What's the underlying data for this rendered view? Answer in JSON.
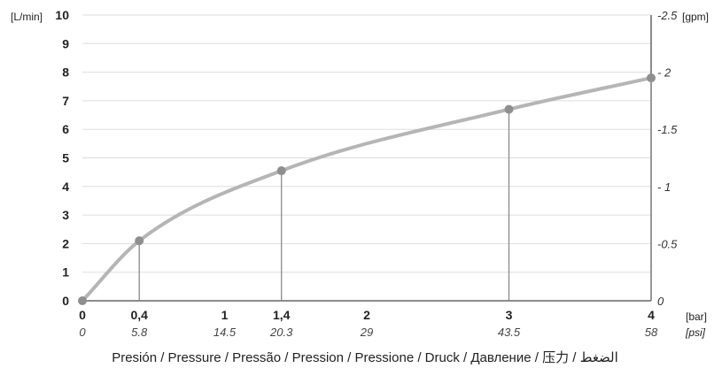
{
  "chart_data": {
    "type": "line",
    "xlabel": "Presión / Pressure / Pressão / Pression / Pressione / Druck / Давление / 压力 / الضغط",
    "x_unit_primary": "[bar]",
    "x_unit_secondary": "[psi]",
    "y_unit_left": "[L/min]",
    "y_unit_right": "[gpm]",
    "xlim": [
      0,
      4
    ],
    "ylim": [
      0,
      10
    ],
    "y_right_lim": [
      0,
      2.5
    ],
    "grid": true,
    "x_ticks": [
      {
        "value": 0,
        "bar": "0",
        "psi": "0"
      },
      {
        "value": 0.4,
        "bar": "0,4",
        "psi": "5.8"
      },
      {
        "value": 1,
        "bar": "1",
        "psi": "14.5"
      },
      {
        "value": 1.4,
        "bar": "1,4",
        "psi": "20.3"
      },
      {
        "value": 2,
        "bar": "2",
        "psi": "29"
      },
      {
        "value": 3,
        "bar": "3",
        "psi": "43.5"
      },
      {
        "value": 4,
        "bar": "4",
        "psi": "58"
      }
    ],
    "y_left_ticks": [
      "0",
      "1",
      "2",
      "3",
      "4",
      "5",
      "6",
      "7",
      "8",
      "9",
      "10"
    ],
    "y_right_ticks": [
      {
        "value": 0,
        "label": "0"
      },
      {
        "value": 0.5,
        "label": "-0.5"
      },
      {
        "value": 1,
        "label": "- 1"
      },
      {
        "value": 1.5,
        "label": "-1.5"
      },
      {
        "value": 2,
        "label": "- 2"
      },
      {
        "value": 2.5,
        "label": "-2.5"
      }
    ],
    "series": [
      {
        "points": [
          {
            "x": 0,
            "y": 0
          },
          {
            "x": 0.4,
            "y": 2.1
          },
          {
            "x": 1.4,
            "y": 4.55
          },
          {
            "x": 3,
            "y": 6.7
          },
          {
            "x": 4,
            "y": 7.8
          }
        ]
      }
    ],
    "colors": {
      "curve": "#b5b5b5",
      "marker": "#8f8f8f",
      "drop_line": "#8a8a8a",
      "grid": "#dddddd",
      "axis": "#666666"
    }
  }
}
